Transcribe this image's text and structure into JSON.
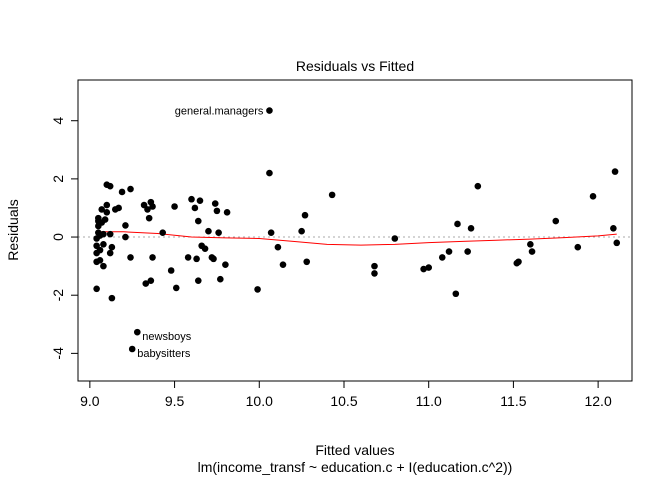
{
  "chart_data": {
    "type": "scatter",
    "title": "Residuals vs Fitted",
    "xlabel": "Fitted values",
    "subtitle": "lm(income_transf ~ education.c + I(education.c^2))",
    "ylabel": "Residuals",
    "xlim": [
      8.93,
      12.2
    ],
    "ylim": [
      -4.95,
      5.4
    ],
    "x_ticks": [
      9.0,
      9.5,
      10.0,
      10.5,
      11.0,
      11.5,
      12.0
    ],
    "x_tick_labels": [
      "9.0",
      "9.5",
      "10.0",
      "10.5",
      "11.0",
      "11.5",
      "12.0"
    ],
    "y_ticks": [
      -4,
      -2,
      0,
      2,
      4
    ],
    "y_tick_labels": [
      "-4",
      "-2",
      "0",
      "2",
      "4"
    ],
    "reference_line_y": 0,
    "colors": {
      "points": "#000000",
      "smooth": "#ff0000",
      "reference": "#aaaaaa",
      "frame": "#000000"
    },
    "points": [
      {
        "x": 9.04,
        "y": -1.78
      },
      {
        "x": 9.04,
        "y": -0.85
      },
      {
        "x": 9.04,
        "y": -0.55
      },
      {
        "x": 9.04,
        "y": -0.3
      },
      {
        "x": 9.04,
        "y": -0.05
      },
      {
        "x": 9.05,
        "y": 0.15
      },
      {
        "x": 9.05,
        "y": 0.38
      },
      {
        "x": 9.05,
        "y": 0.55
      },
      {
        "x": 9.05,
        "y": 0.65
      },
      {
        "x": 9.06,
        "y": -0.8
      },
      {
        "x": 9.06,
        "y": -0.45
      },
      {
        "x": 9.06,
        "y": 0.05
      },
      {
        "x": 9.07,
        "y": 0.5
      },
      {
        "x": 9.07,
        "y": 0.95
      },
      {
        "x": 9.08,
        "y": -0.25
      },
      {
        "x": 9.08,
        "y": 0.1
      },
      {
        "x": 9.08,
        "y": -1.0
      },
      {
        "x": 9.09,
        "y": 0.6
      },
      {
        "x": 9.1,
        "y": 1.8
      },
      {
        "x": 9.1,
        "y": 0.85
      },
      {
        "x": 9.1,
        "y": 1.1
      },
      {
        "x": 9.12,
        "y": 0.1
      },
      {
        "x": 9.12,
        "y": -0.55
      },
      {
        "x": 9.12,
        "y": 1.75
      },
      {
        "x": 9.13,
        "y": -2.1
      },
      {
        "x": 9.13,
        "y": -0.35
      },
      {
        "x": 9.15,
        "y": 0.95
      },
      {
        "x": 9.17,
        "y": 1.0
      },
      {
        "x": 9.19,
        "y": 1.55
      },
      {
        "x": 9.21,
        "y": 0.0
      },
      {
        "x": 9.21,
        "y": 0.4
      },
      {
        "x": 9.24,
        "y": 1.65
      },
      {
        "x": 9.24,
        "y": -0.7
      },
      {
        "x": 9.25,
        "y": -3.85
      },
      {
        "x": 9.28,
        "y": -3.27
      },
      {
        "x": 9.32,
        "y": 1.1
      },
      {
        "x": 9.33,
        "y": -1.6
      },
      {
        "x": 9.34,
        "y": 0.95
      },
      {
        "x": 9.35,
        "y": 0.65
      },
      {
        "x": 9.36,
        "y": 1.2
      },
      {
        "x": 9.36,
        "y": -1.5
      },
      {
        "x": 9.37,
        "y": -0.7
      },
      {
        "x": 9.37,
        "y": 1.05
      },
      {
        "x": 9.43,
        "y": 0.15
      },
      {
        "x": 9.48,
        "y": -1.15
      },
      {
        "x": 9.5,
        "y": 1.05
      },
      {
        "x": 9.51,
        "y": -1.75
      },
      {
        "x": 9.58,
        "y": -0.7
      },
      {
        "x": 9.6,
        "y": 1.3
      },
      {
        "x": 9.62,
        "y": 1.0
      },
      {
        "x": 9.63,
        "y": -0.75
      },
      {
        "x": 9.64,
        "y": 0.55
      },
      {
        "x": 9.64,
        "y": -1.5
      },
      {
        "x": 9.65,
        "y": 1.25
      },
      {
        "x": 9.66,
        "y": -0.3
      },
      {
        "x": 9.68,
        "y": -0.4
      },
      {
        "x": 9.7,
        "y": 0.2
      },
      {
        "x": 9.72,
        "y": -0.7
      },
      {
        "x": 9.73,
        "y": -0.75
      },
      {
        "x": 9.74,
        "y": 1.15
      },
      {
        "x": 9.75,
        "y": 0.9
      },
      {
        "x": 9.76,
        "y": 0.15
      },
      {
        "x": 9.77,
        "y": -1.45
      },
      {
        "x": 9.8,
        "y": -0.95
      },
      {
        "x": 9.81,
        "y": 0.85
      },
      {
        "x": 9.99,
        "y": -1.8
      },
      {
        "x": 10.06,
        "y": 4.35
      },
      {
        "x": 10.06,
        "y": 2.2
      },
      {
        "x": 10.07,
        "y": 0.15
      },
      {
        "x": 10.11,
        "y": -0.35
      },
      {
        "x": 10.14,
        "y": -0.95
      },
      {
        "x": 10.25,
        "y": 0.2
      },
      {
        "x": 10.27,
        "y": 0.75
      },
      {
        "x": 10.28,
        "y": -0.85
      },
      {
        "x": 10.43,
        "y": 1.45
      },
      {
        "x": 10.68,
        "y": -1.0
      },
      {
        "x": 10.68,
        "y": -1.25
      },
      {
        "x": 10.8,
        "y": -0.05
      },
      {
        "x": 10.97,
        "y": -1.1
      },
      {
        "x": 11.0,
        "y": -1.05
      },
      {
        "x": 11.08,
        "y": -0.7
      },
      {
        "x": 11.12,
        "y": -0.5
      },
      {
        "x": 11.16,
        "y": -1.95
      },
      {
        "x": 11.17,
        "y": 0.45
      },
      {
        "x": 11.23,
        "y": -0.5
      },
      {
        "x": 11.25,
        "y": 0.3
      },
      {
        "x": 11.29,
        "y": 1.75
      },
      {
        "x": 11.52,
        "y": -0.9
      },
      {
        "x": 11.53,
        "y": -0.85
      },
      {
        "x": 11.6,
        "y": -0.25
      },
      {
        "x": 11.61,
        "y": -0.5
      },
      {
        "x": 11.75,
        "y": 0.55
      },
      {
        "x": 11.88,
        "y": -0.35
      },
      {
        "x": 11.97,
        "y": 1.4
      },
      {
        "x": 12.09,
        "y": 0.3
      },
      {
        "x": 12.1,
        "y": 2.25
      },
      {
        "x": 12.11,
        "y": -0.2
      }
    ],
    "labeled_points": [
      {
        "label": "general.managers",
        "x": 10.06,
        "y": 4.35
      },
      {
        "label": "newsboys",
        "x": 9.28,
        "y": -3.27
      },
      {
        "label": "babysitters",
        "x": 9.25,
        "y": -3.85
      }
    ],
    "smooth_line": {
      "x": [
        9.04,
        9.2,
        9.4,
        9.6,
        9.8,
        10.0,
        10.2,
        10.4,
        10.6,
        10.8,
        11.0,
        11.2,
        11.4,
        11.6,
        11.8,
        12.0,
        12.11
      ],
      "y": [
        0.18,
        0.18,
        0.12,
        0.0,
        -0.03,
        -0.05,
        -0.15,
        -0.25,
        -0.28,
        -0.25,
        -0.19,
        -0.15,
        -0.11,
        -0.07,
        -0.02,
        0.04,
        0.1
      ]
    }
  }
}
